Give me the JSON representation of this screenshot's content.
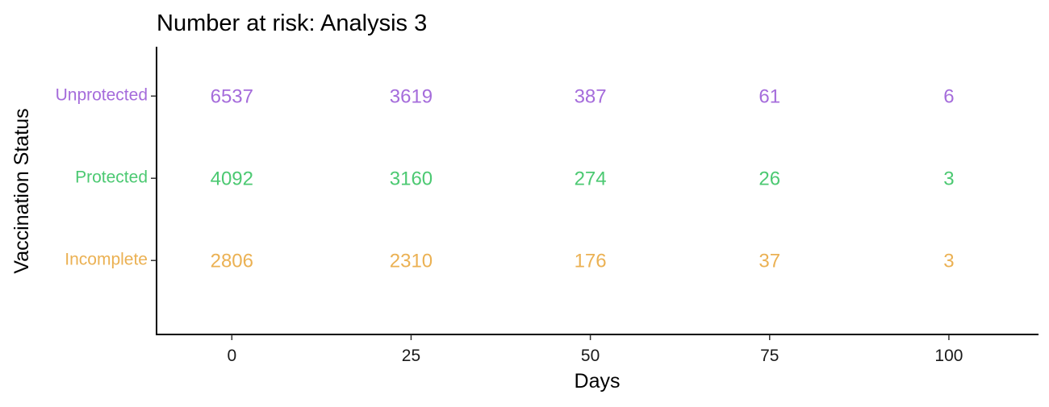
{
  "chart_data": {
    "type": "table",
    "title": "Number at risk: Analysis 3",
    "xlabel": "Days",
    "ylabel": "Vaccination Status",
    "xlim": [
      -10.5,
      112.5
    ],
    "x_ticks": [
      0,
      25,
      50,
      75,
      100
    ],
    "x_tick_labels": [
      "0",
      "25",
      "50",
      "75",
      "100"
    ],
    "grid": false,
    "legend": "none",
    "rows": [
      {
        "name": "Unprotected",
        "color": "#A56CDB",
        "x": [
          0,
          25,
          50,
          75,
          100
        ],
        "values": [
          6537,
          3619,
          387,
          61,
          6
        ]
      },
      {
        "name": "Protected",
        "color": "#4CC972",
        "x": [
          0,
          25,
          50,
          75,
          100
        ],
        "values": [
          4092,
          3160,
          274,
          26,
          3
        ]
      },
      {
        "name": "Incomplete",
        "color": "#EBB153",
        "x": [
          0,
          25,
          50,
          75,
          100
        ],
        "values": [
          2806,
          2310,
          176,
          37,
          3
        ]
      }
    ]
  }
}
